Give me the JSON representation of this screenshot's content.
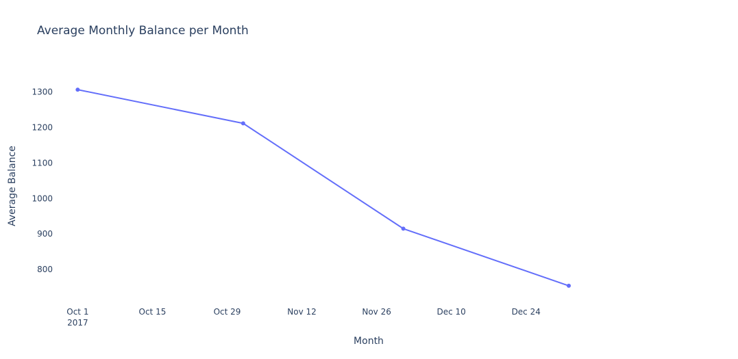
{
  "chart_data": {
    "type": "line",
    "title": "Average Monthly Balance per Month",
    "xlabel": "Month",
    "ylabel": "Average Balance",
    "x": [
      "2017-10-01",
      "2017-11-01",
      "2017-12-01",
      "2018-01-01"
    ],
    "series": [
      {
        "values": [
          1307,
          1212,
          915,
          754
        ]
      }
    ],
    "x_ticks": [
      {
        "date": "2017-10-01",
        "label": "Oct 1",
        "sublabel": "2017"
      },
      {
        "date": "2017-10-15",
        "label": "Oct 15"
      },
      {
        "date": "2017-10-29",
        "label": "Oct 29"
      },
      {
        "date": "2017-11-12",
        "label": "Nov 12"
      },
      {
        "date": "2017-11-26",
        "label": "Nov 26"
      },
      {
        "date": "2017-12-10",
        "label": "Dec 10"
      },
      {
        "date": "2017-12-24",
        "label": "Dec 24"
      }
    ],
    "y_ticks": [
      800,
      900,
      1000,
      1100,
      1200,
      1300
    ],
    "xlim": [
      "2017-09-28",
      "2018-01-25"
    ],
    "ylim": [
      721,
      1367
    ],
    "grid": false,
    "mode": "lines+markers",
    "colors": {
      "line": "#636efa",
      "text": "#2a3f5f",
      "background": "#ffffff"
    }
  }
}
